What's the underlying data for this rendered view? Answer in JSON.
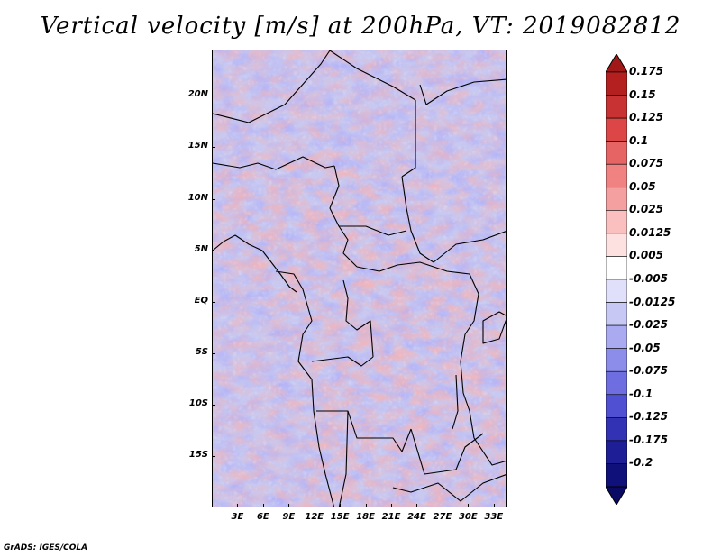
{
  "title": "Vertical velocity [m/s] at 200hPa, VT: 2019082812",
  "credit": "GrADS: IGES/COLA",
  "map": {
    "lat_labels": [
      "20N",
      "15N",
      "10N",
      "5N",
      "EQ",
      "5S",
      "10S",
      "15S"
    ],
    "lat_values": [
      20,
      15,
      10,
      5,
      0,
      -5,
      -10,
      -15
    ],
    "lon_labels": [
      "3E",
      "6E",
      "9E",
      "12E",
      "15E",
      "18E",
      "21E",
      "24E",
      "27E",
      "30E",
      "33E"
    ],
    "lon_values": [
      3,
      6,
      9,
      12,
      15,
      18,
      21,
      24,
      27,
      30,
      33
    ],
    "lon_range": [
      0,
      34.5
    ],
    "lat_range": [
      -20,
      24.5
    ]
  },
  "colorbar": {
    "labels": [
      "0.175",
      "0.15",
      "0.125",
      "0.1",
      "0.075",
      "0.05",
      "0.025",
      "0.0125",
      "0.005",
      "-0.005",
      "-0.0125",
      "-0.025",
      "-0.05",
      "-0.075",
      "-0.1",
      "-0.125",
      "-0.175",
      "-0.2"
    ],
    "colors": [
      "#a01818",
      "#b42020",
      "#c83232",
      "#dc4646",
      "#e66464",
      "#f08282",
      "#f5a0a0",
      "#fac0c0",
      "#fde0e0",
      "#ffffff",
      "#e0e0fa",
      "#c8c8f5",
      "#aaaaf0",
      "#8c8ceb",
      "#6e6ee1",
      "#5050d2",
      "#3232b4",
      "#1e1e96",
      "#10107a",
      "#0a0a64"
    ]
  }
}
